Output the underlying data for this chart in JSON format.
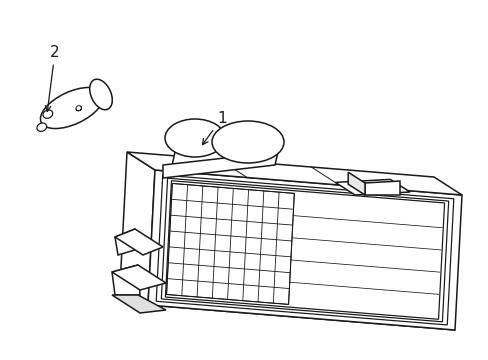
{
  "background_color": "#ffffff",
  "line_color": "#1a1a1a",
  "label1_text": "1",
  "label2_text": "2"
}
